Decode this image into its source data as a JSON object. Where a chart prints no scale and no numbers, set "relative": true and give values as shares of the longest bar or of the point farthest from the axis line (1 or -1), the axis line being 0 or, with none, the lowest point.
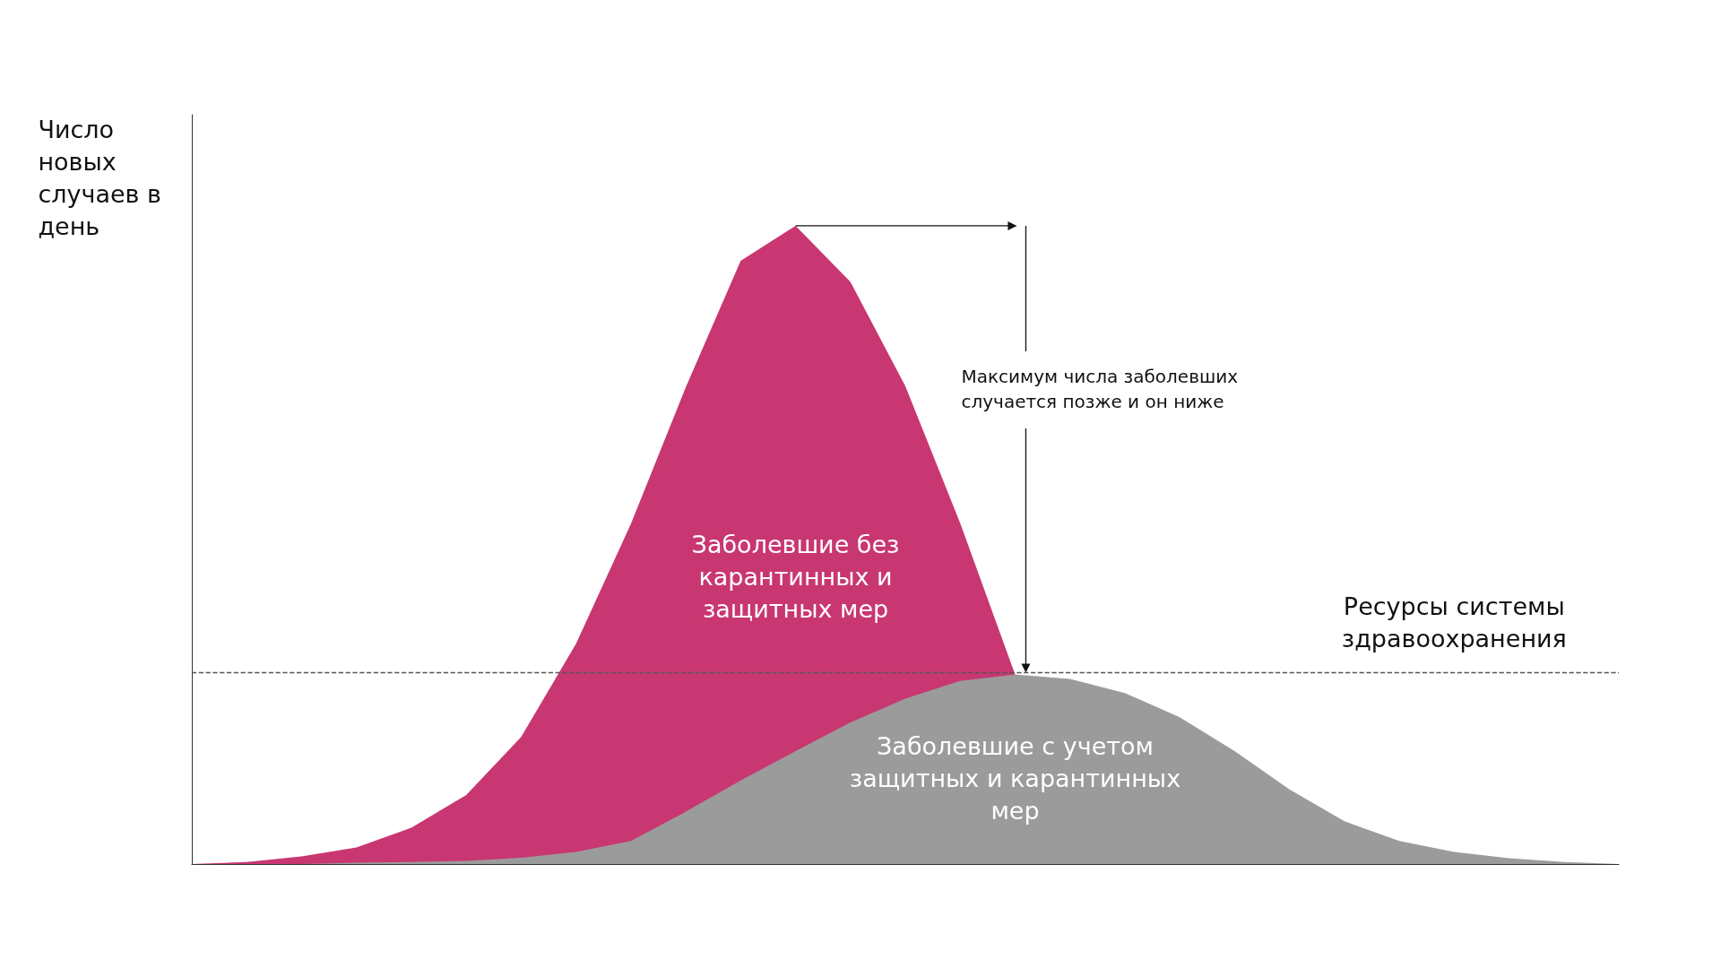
{
  "chart_data": {
    "type": "area",
    "relative": true,
    "ylabel": "Число новых случаев в день",
    "categories": [
      null,
      null,
      null,
      null,
      null,
      null,
      null,
      null,
      null,
      null,
      null,
      null,
      null,
      null,
      null,
      null,
      null,
      null,
      null,
      null,
      null,
      null,
      null,
      null,
      null,
      null,
      null
    ],
    "series": [
      {
        "name": "Заболевшие без карантинных и защитных мер",
        "color": "#c83771",
        "values": [
          0,
          0.003,
          0.012,
          0.026,
          0.057,
          0.108,
          0.199,
          0.345,
          0.533,
          0.747,
          0.945,
          1,
          0.912,
          0.749,
          0.534,
          0.297,
          null,
          null,
          null,
          null,
          null,
          null,
          null,
          null,
          null,
          null,
          null
        ]
      },
      {
        "name": "Заболевшие с учетом защитных и карантинных мер",
        "color": "#9b9b9b",
        "values": [
          0,
          0,
          0,
          0.002,
          0.003,
          0.005,
          0.01,
          0.019,
          0.036,
          0.082,
          0.131,
          0.177,
          0.222,
          0.259,
          0.287,
          0.297,
          0.29,
          0.268,
          0.23,
          0.177,
          0.117,
          0.067,
          0.036,
          0.019,
          0.009,
          0.003,
          0
        ]
      }
    ],
    "ref_lines": [
      {
        "axis": "y",
        "value": 0.297,
        "label": "Ресурсы системы здравоохранения",
        "color": "#555555",
        "line_style": "dashed"
      }
    ],
    "annotations": [
      "Максимум числа заболевших случается позже и он ниже"
    ],
    "legend": false,
    "grid": false
  }
}
